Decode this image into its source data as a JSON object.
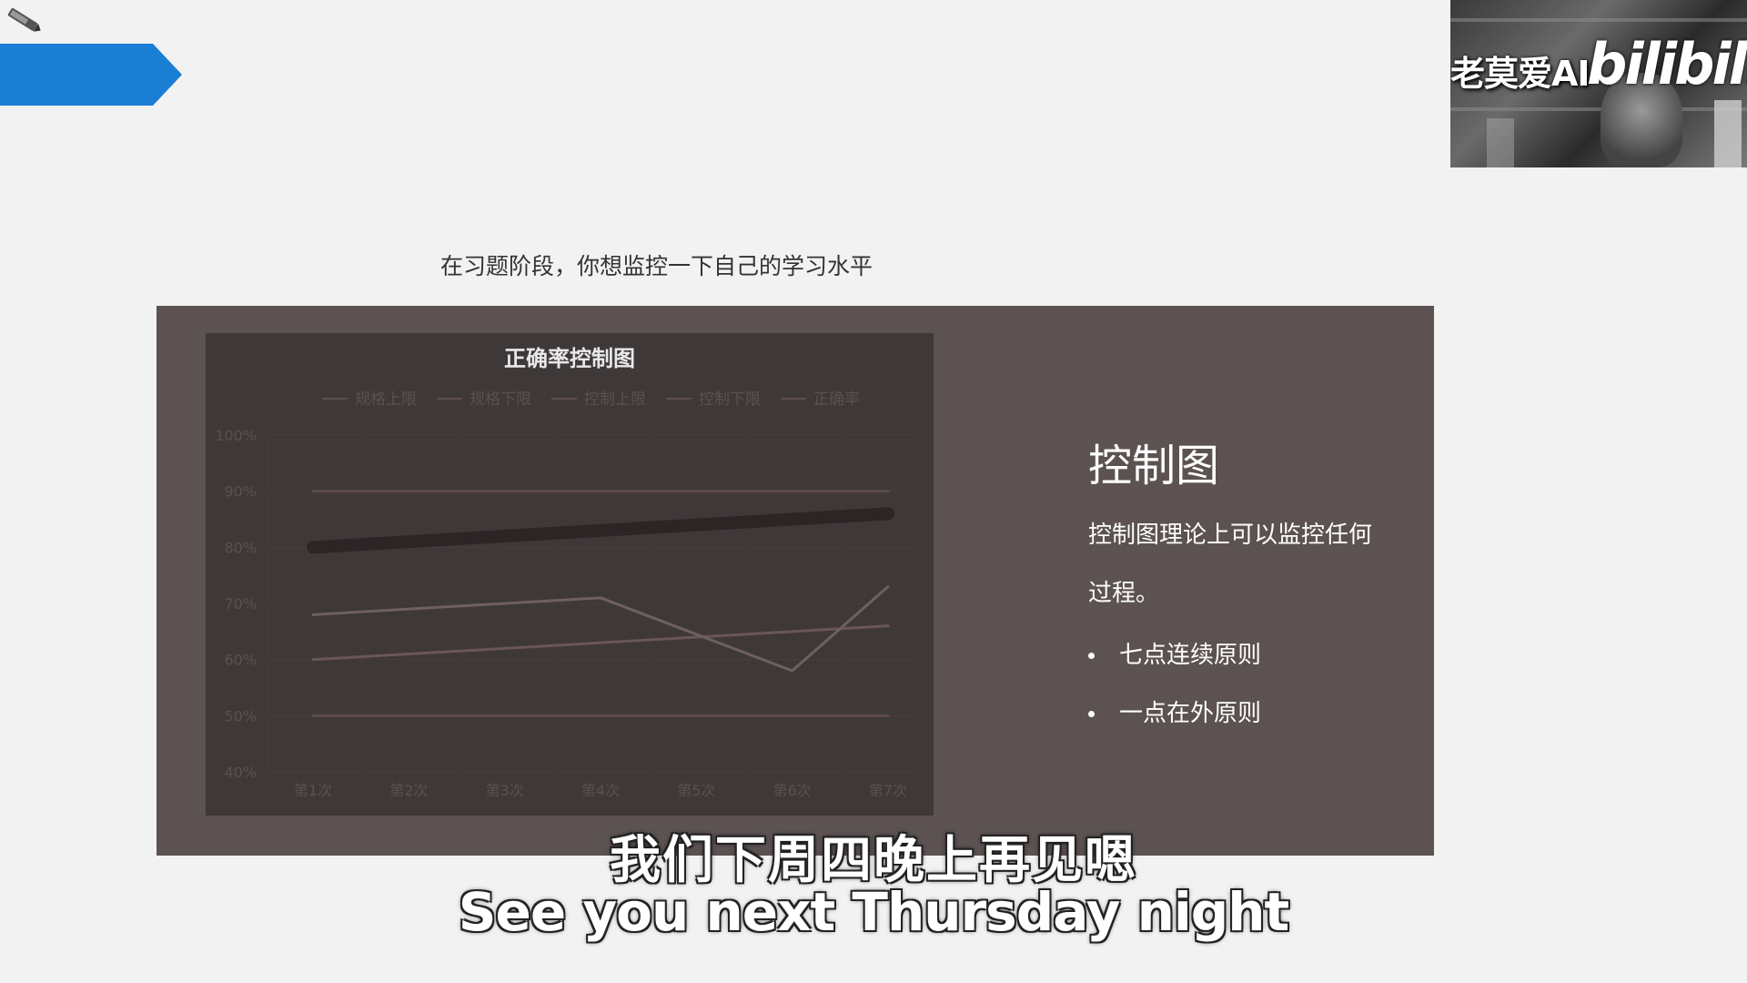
{
  "overlay": {
    "channel_name": "老莫爱AI",
    "platform_logo": "bilibili"
  },
  "slide": {
    "heading": "在习题阶段，你想监控一下自己的学习水平",
    "side": {
      "title": "控制图",
      "description": "控制图理论上可以监控任何过程。",
      "bullets": [
        "七点连续原则",
        "一点在外原则"
      ]
    }
  },
  "chart_data": {
    "type": "line",
    "title": "正确率控制图",
    "legend_position": "top",
    "categories": [
      "第1次",
      "第2次",
      "第3次",
      "第4次",
      "第5次",
      "第6次",
      "第7次"
    ],
    "y_ticks": [
      "100%",
      "90%",
      "80%",
      "70%",
      "60%",
      "50%",
      "40%"
    ],
    "ylim": [
      40,
      100
    ],
    "grid": true,
    "series": [
      {
        "name": "规格上限",
        "color": "#5e4b4d",
        "values": [
          90,
          90,
          90,
          90,
          90,
          90,
          90
        ]
      },
      {
        "name": "规格下限",
        "color": "#5e4b4d",
        "values": [
          50,
          50,
          50,
          50,
          50,
          50,
          50
        ]
      },
      {
        "name": "控制上限",
        "color": "#2c2425",
        "values": [
          80,
          81,
          82,
          83,
          84,
          85,
          86
        ]
      },
      {
        "name": "控制下限",
        "color": "#6a5658",
        "values": [
          60,
          61,
          62,
          63,
          64,
          65,
          66
        ]
      },
      {
        "name": "正确率",
        "color": "#6f5f61",
        "values": [
          68,
          69,
          70,
          71,
          null,
          58,
          73
        ]
      }
    ]
  },
  "subtitles": {
    "chinese": "我们下周四晚上再见嗯",
    "english": "See you next Thursday night"
  }
}
